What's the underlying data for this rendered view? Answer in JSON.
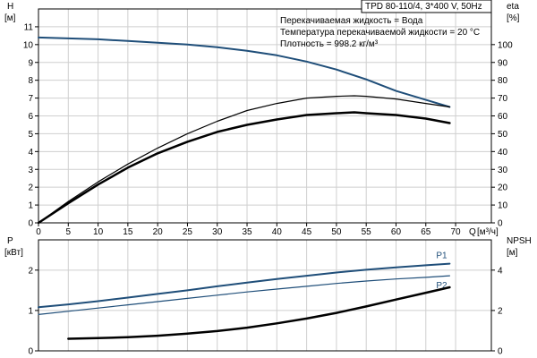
{
  "title": "TPD 80-110/4, 3*400 V, 50Hz",
  "info_lines": [
    "Перекачиваемая жидкость = Вода",
    "Температура перекачиваемой жидкости = 20 °C",
    "Плотность = 998.2 кг/м³"
  ],
  "colors": {
    "head": "#1f4e79",
    "efficiency": "#000000",
    "power_p1": "#1f4e79",
    "power_p2": "#1f4e79",
    "npsh": "#000000",
    "grid": "#cfcfcf"
  },
  "chart_data": [
    {
      "type": "line",
      "id": "top",
      "xlabel": "Q",
      "xunit": "[м³/ч]",
      "xlim": [
        0,
        76
      ],
      "x_ticks": [
        0,
        5,
        10,
        15,
        20,
        25,
        30,
        35,
        40,
        45,
        50,
        55,
        60,
        65,
        70
      ],
      "y_left": {
        "label": "H",
        "unit": "[м]",
        "lim": [
          0,
          12
        ],
        "ticks": [
          0,
          1,
          2,
          3,
          4,
          5,
          6,
          7,
          8,
          9,
          10,
          11
        ]
      },
      "y_right": {
        "label": "eta",
        "unit": "[%]",
        "lim": [
          0,
          120
        ],
        "ticks": [
          0,
          10,
          20,
          30,
          40,
          50,
          60,
          70,
          80,
          90,
          100
        ]
      },
      "grid": true,
      "series": [
        {
          "axis": "left",
          "color": "#1f4e79",
          "width": 2,
          "x": [
            0,
            5,
            10,
            15,
            20,
            25,
            30,
            35,
            40,
            45,
            50,
            55,
            60,
            65,
            69
          ],
          "y": [
            10.4,
            10.35,
            10.3,
            10.2,
            10.1,
            10.0,
            9.85,
            9.65,
            9.4,
            9.05,
            8.6,
            8.05,
            7.4,
            6.9,
            6.5
          ]
        },
        {
          "axis": "right",
          "color": "#000000",
          "width": 1.2,
          "x": [
            0,
            5,
            10,
            15,
            20,
            25,
            30,
            35,
            40,
            45,
            50,
            53,
            55,
            60,
            65,
            69
          ],
          "y": [
            0,
            12,
            23,
            33,
            42,
            50,
            57,
            63,
            67,
            70,
            71,
            71.3,
            71,
            69.5,
            67,
            65
          ]
        },
        {
          "axis": "left",
          "color": "#000000",
          "width": 2.5,
          "x": [
            0,
            5,
            10,
            15,
            20,
            25,
            30,
            35,
            40,
            45,
            50,
            53,
            55,
            60,
            65,
            69
          ],
          "y": [
            0,
            1.1,
            2.15,
            3.1,
            3.9,
            4.55,
            5.1,
            5.5,
            5.8,
            6.05,
            6.15,
            6.2,
            6.15,
            6.05,
            5.85,
            5.6
          ]
        }
      ]
    },
    {
      "type": "line",
      "id": "bottom",
      "xlim": [
        0,
        76
      ],
      "y_left": {
        "label": "P",
        "unit": "[кВт]",
        "lim": [
          0,
          2.75
        ],
        "ticks": [
          0,
          1,
          2
        ]
      },
      "y_right": {
        "label": "NPSH",
        "unit": "[м]",
        "lim": [
          0,
          5.5
        ],
        "ticks": [
          0,
          2,
          4
        ]
      },
      "grid": true,
      "series": [
        {
          "name": "P1",
          "axis": "left",
          "color": "#1f4e79",
          "width": 2,
          "x": [
            0,
            5,
            10,
            15,
            20,
            25,
            30,
            35,
            40,
            45,
            50,
            55,
            60,
            65,
            69
          ],
          "y": [
            1.08,
            1.15,
            1.23,
            1.32,
            1.41,
            1.5,
            1.6,
            1.69,
            1.78,
            1.86,
            1.94,
            2.01,
            2.07,
            2.12,
            2.16
          ]
        },
        {
          "name": "P2",
          "axis": "left",
          "color": "#1f4e79",
          "width": 1.2,
          "x": [
            0,
            5,
            10,
            15,
            20,
            25,
            30,
            35,
            40,
            45,
            50,
            55,
            60,
            65,
            69
          ],
          "y": [
            0.9,
            0.98,
            1.06,
            1.14,
            1.22,
            1.3,
            1.38,
            1.46,
            1.53,
            1.6,
            1.67,
            1.73,
            1.78,
            1.82,
            1.86
          ]
        },
        {
          "axis": "right",
          "color": "#000000",
          "width": 2.5,
          "x": [
            5,
            10,
            15,
            20,
            25,
            30,
            35,
            40,
            45,
            50,
            55,
            60,
            65,
            69
          ],
          "y": [
            0.6,
            0.63,
            0.68,
            0.75,
            0.85,
            0.98,
            1.15,
            1.36,
            1.6,
            1.88,
            2.2,
            2.54,
            2.88,
            3.15
          ]
        }
      ]
    }
  ]
}
